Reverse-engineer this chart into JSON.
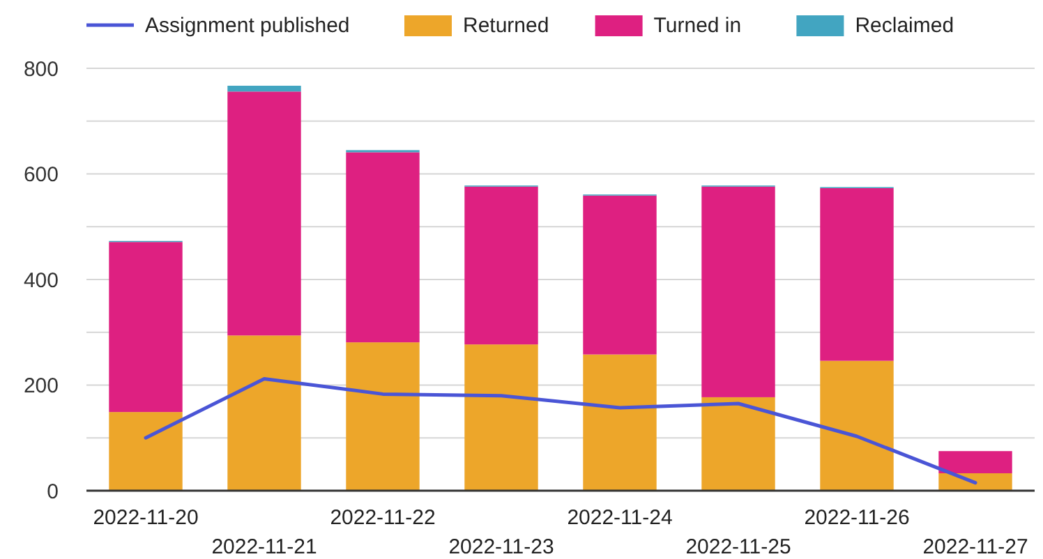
{
  "chart_data": {
    "type": "bar",
    "stacked": true,
    "categories": [
      "2022-11-20",
      "2022-11-21",
      "2022-11-22",
      "2022-11-23",
      "2022-11-24",
      "2022-11-25",
      "2022-11-26",
      "2022-11-27"
    ],
    "series": [
      {
        "name": "Assignment published",
        "type": "line",
        "color": "#4a55d6",
        "values": [
          100,
          212,
          183,
          180,
          157,
          165,
          103,
          15
        ]
      },
      {
        "name": "Returned",
        "color": "#eda62a",
        "values": [
          149,
          294,
          281,
          277,
          258,
          177,
          246,
          33
        ]
      },
      {
        "name": "Turned in",
        "color": "#de2081",
        "values": [
          322,
          462,
          360,
          299,
          301,
          399,
          327,
          42
        ]
      },
      {
        "name": "Reclaimed",
        "color": "#42a5c1",
        "values": [
          2,
          11,
          4,
          2,
          2,
          2,
          2,
          0
        ]
      }
    ],
    "ylim": [
      0,
      800
    ],
    "yticks": [
      0,
      {
        "value": 100,
        "label": null
      },
      200,
      {
        "value": 300,
        "label": null
      },
      400,
      {
        "value": 500,
        "label": null
      },
      600,
      {
        "value": 700,
        "label": null
      },
      800
    ],
    "grid": "y",
    "legend": "top"
  }
}
